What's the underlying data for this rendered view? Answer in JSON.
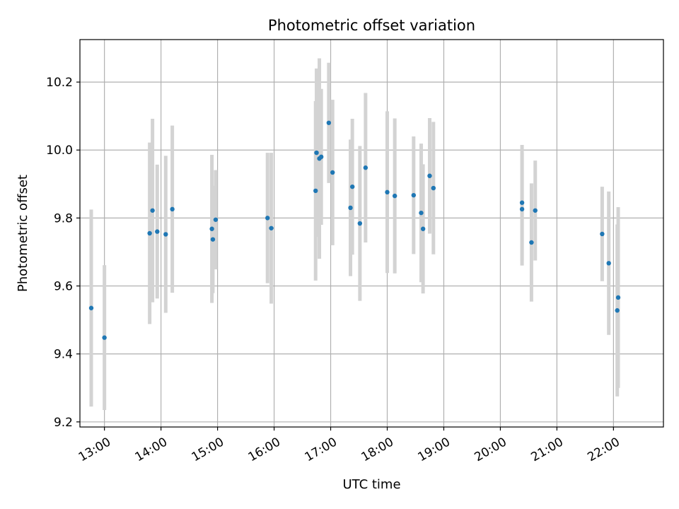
{
  "chart_data": {
    "type": "scatter",
    "title": "Photometric offset variation",
    "xlabel": "UTC time",
    "ylabel": "Photometric offset",
    "x_tick_labels": [
      "13:00",
      "14:00",
      "15:00",
      "16:00",
      "17:00",
      "18:00",
      "19:00",
      "20:00",
      "21:00",
      "22:00"
    ],
    "y_tick_labels": [
      "9.2",
      "9.4",
      "9.6",
      "9.8",
      "10.0",
      "10.2"
    ],
    "xlim": [
      "12:34",
      "22:53"
    ],
    "ylim": [
      9.185,
      10.325
    ],
    "grid": true,
    "point_color": "#1f77b4",
    "errorbar_color": "#d3d3d3",
    "points": [
      {
        "x": "12:46",
        "y": 9.535,
        "yerr": 0.29
      },
      {
        "x": "13:00",
        "y": 9.448,
        "yerr": 0.213
      },
      {
        "x": "13:48",
        "y": 9.755,
        "yerr": 0.267
      },
      {
        "x": "13:51",
        "y": 9.822,
        "yerr": 0.27
      },
      {
        "x": "13:56",
        "y": 9.76,
        "yerr": 0.197
      },
      {
        "x": "14:05",
        "y": 9.752,
        "yerr": 0.231
      },
      {
        "x": "14:12",
        "y": 9.826,
        "yerr": 0.246
      },
      {
        "x": "14:54",
        "y": 9.768,
        "yerr": 0.218
      },
      {
        "x": "14:55",
        "y": 9.737,
        "yerr": 0.158
      },
      {
        "x": "14:58",
        "y": 9.795,
        "yerr": 0.146
      },
      {
        "x": "15:53",
        "y": 9.8,
        "yerr": 0.192
      },
      {
        "x": "15:57",
        "y": 9.77,
        "yerr": 0.222
      },
      {
        "x": "16:44",
        "y": 9.88,
        "yerr": 0.264
      },
      {
        "x": "16:45",
        "y": 9.992,
        "yerr": 0.248
      },
      {
        "x": "16:48",
        "y": 9.975,
        "yerr": 0.295
      },
      {
        "x": "16:50",
        "y": 9.98,
        "yerr": 0.2
      },
      {
        "x": "16:58",
        "y": 10.08,
        "yerr": 0.177
      },
      {
        "x": "17:02",
        "y": 9.934,
        "yerr": 0.214
      },
      {
        "x": "17:21",
        "y": 9.83,
        "yerr": 0.201
      },
      {
        "x": "17:23",
        "y": 9.892,
        "yerr": 0.2
      },
      {
        "x": "17:31",
        "y": 9.784,
        "yerr": 0.228
      },
      {
        "x": "17:37",
        "y": 9.948,
        "yerr": 0.22
      },
      {
        "x": "18:00",
        "y": 9.876,
        "yerr": 0.238
      },
      {
        "x": "18:08",
        "y": 9.865,
        "yerr": 0.228
      },
      {
        "x": "18:28",
        "y": 9.867,
        "yerr": 0.173
      },
      {
        "x": "18:36",
        "y": 9.815,
        "yerr": 0.204
      },
      {
        "x": "18:38",
        "y": 9.768,
        "yerr": 0.19
      },
      {
        "x": "18:45",
        "y": 9.924,
        "yerr": 0.17
      },
      {
        "x": "18:49",
        "y": 9.888,
        "yerr": 0.195
      },
      {
        "x": "20:23",
        "y": 9.845,
        "yerr": 0.17
      },
      {
        "x": "20:23",
        "y": 9.826,
        "yerr": 0.166
      },
      {
        "x": "20:33",
        "y": 9.728,
        "yerr": 0.174
      },
      {
        "x": "20:37",
        "y": 9.822,
        "yerr": 0.147
      },
      {
        "x": "21:48",
        "y": 9.753,
        "yerr": 0.139
      },
      {
        "x": "21:55",
        "y": 9.667,
        "yerr": 0.211
      },
      {
        "x": "22:04",
        "y": 9.528,
        "yerr": 0.253
      },
      {
        "x": "22:05",
        "y": 9.566,
        "yerr": 0.266
      }
    ]
  }
}
